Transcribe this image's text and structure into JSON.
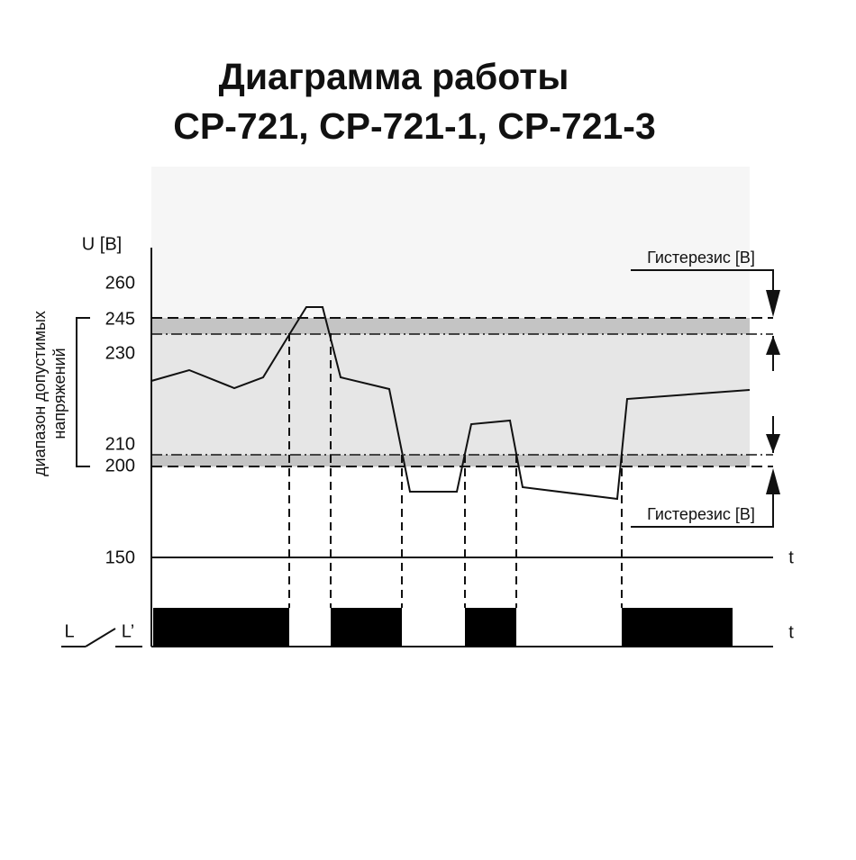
{
  "title": {
    "line1": "Диаграмма работы",
    "line2": "CP-721, CP-721-1, CP-721-3"
  },
  "y_axis": {
    "label": "U [B]",
    "ticks": [
      "260",
      "245",
      "230",
      "210",
      "200",
      "150"
    ]
  },
  "range_label": {
    "line1": "диапазон допустимых",
    "line2": "напряжений"
  },
  "hysteresis": {
    "top": "Гистерезис [B]",
    "bottom": "Гистерезис [B]"
  },
  "time_labels": [
    "t",
    "t"
  ],
  "switch": {
    "left": "L",
    "right": "L’"
  }
}
